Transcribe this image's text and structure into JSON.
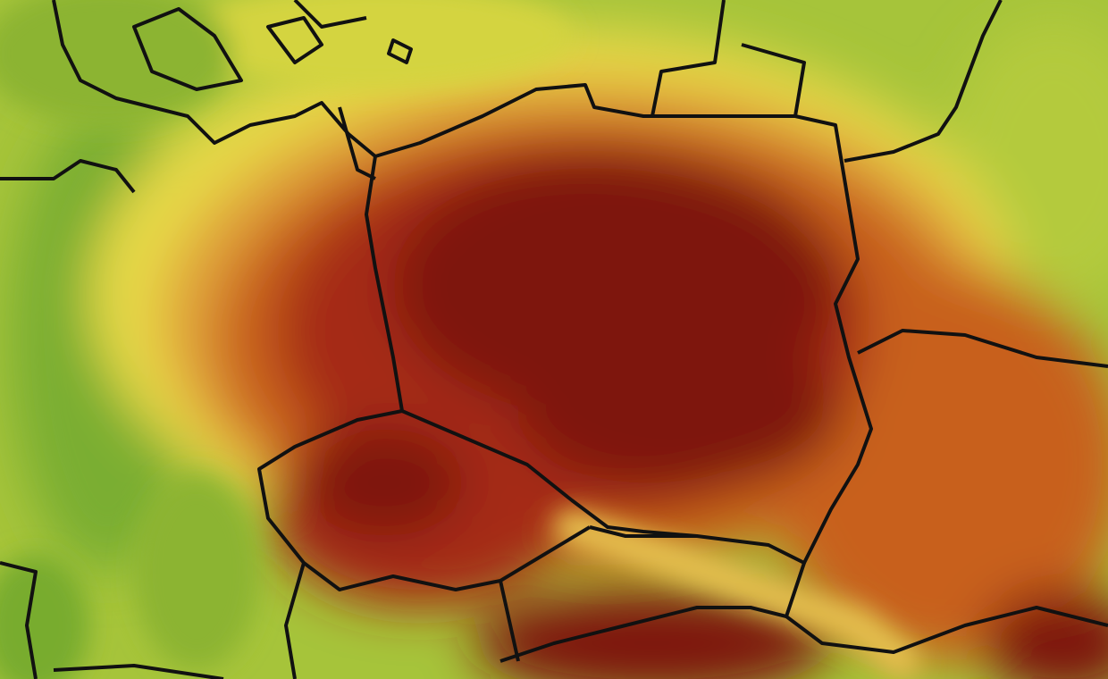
{
  "map": {
    "type": "temperature-heatmap",
    "colors": {
      "hottest": "#7e1408",
      "hot": "#a52a12",
      "warm": "#c8601f",
      "mild": "#e2a03a",
      "yellow": "#e8dc45",
      "light-green": "#b8cc3c",
      "green": "#78ac2e",
      "border": "#111111"
    }
  }
}
